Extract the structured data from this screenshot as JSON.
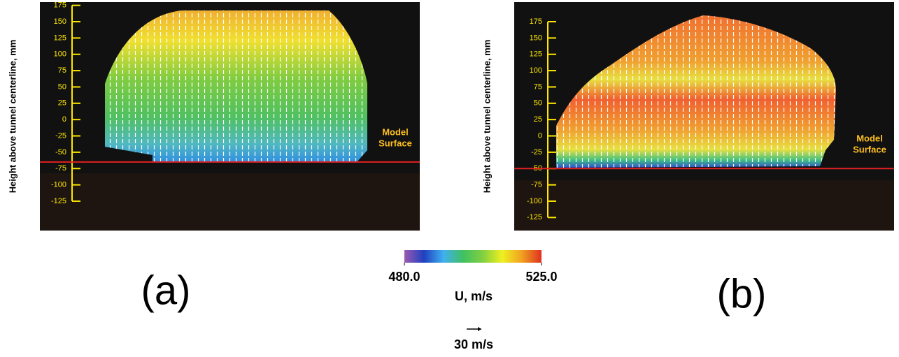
{
  "chart_data": [
    {
      "type": "field",
      "ylabel": "Height above tunnel centerline, mm",
      "ylim": [
        -170,
        180
      ],
      "yticks": [
        175,
        150,
        125,
        100,
        75,
        50,
        25,
        0,
        -25,
        -50,
        -75,
        -100,
        -125
      ],
      "surface": -65,
      "annotation": [
        "Model",
        "Surface"
      ],
      "panel_label": "(a)",
      "axis_color": "#ffe800",
      "surface_color": "#e02020"
    },
    {
      "type": "field",
      "ylabel": "Height above tunnel centerline, mm",
      "ylim": [
        -145,
        205
      ],
      "yticks": [
        175,
        150,
        125,
        100,
        75,
        50,
        25,
        0,
        -25,
        -50,
        -75,
        -100,
        -125
      ],
      "surface": -50,
      "annotation": [
        "Model",
        "Surface"
      ],
      "panel_label": "(b)",
      "axis_color": "#ffe800",
      "surface_color": "#e02020"
    }
  ],
  "colorbar": {
    "label": "U, m/s",
    "ticks": [
      {
        "value": 480,
        "label": "480.0"
      },
      {
        "value": 525,
        "label": "525.0"
      }
    ],
    "colors": [
      "#9a5ab0",
      "#2040c0",
      "#40b0f0",
      "#40c060",
      "#80d040",
      "#f0f020",
      "#f0a020",
      "#e03020"
    ]
  },
  "reference_vector": "30 m/s"
}
